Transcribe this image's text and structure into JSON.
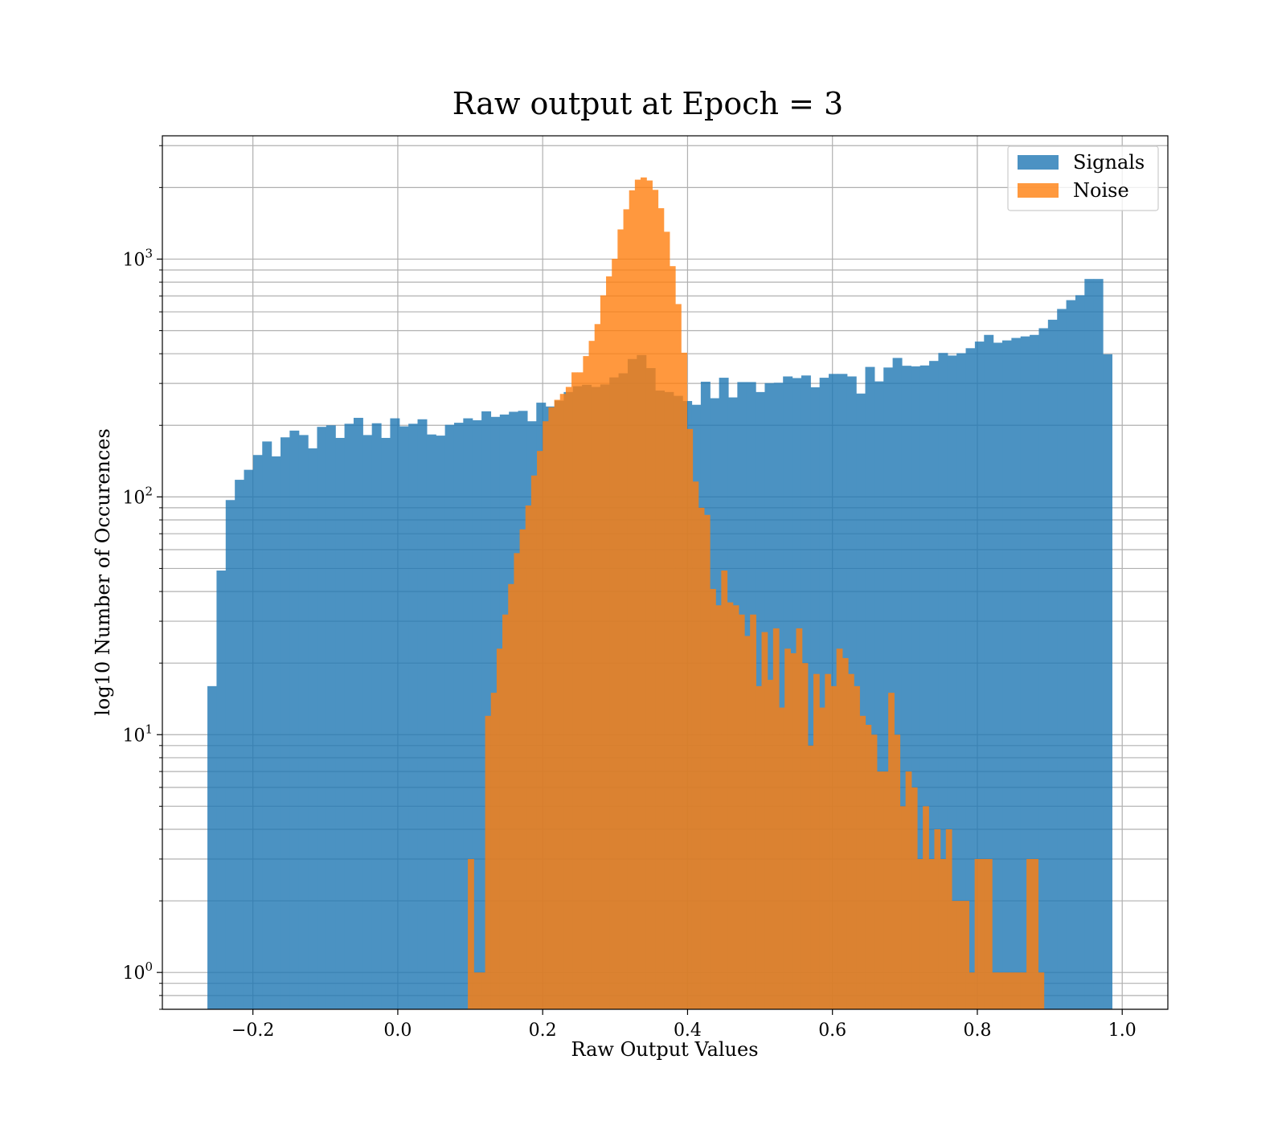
{
  "chart_data": {
    "type": "histogram",
    "title": "Raw output at Epoch = 3",
    "xlabel": "Raw Output Values",
    "ylabel": "log10 Number of Occurences",
    "xlim": [
      -0.325,
      1.063
    ],
    "ylim": [
      0.7,
      3300
    ],
    "yscale": "log",
    "grid": true,
    "legend": {
      "position": "top-right"
    },
    "xticks": [
      {
        "value": -0.2,
        "label": "−0.2"
      },
      {
        "value": 0.0,
        "label": "0.0"
      },
      {
        "value": 0.2,
        "label": "0.2"
      },
      {
        "value": 0.4,
        "label": "0.4"
      },
      {
        "value": 0.6,
        "label": "0.6"
      },
      {
        "value": 0.8,
        "label": "0.8"
      },
      {
        "value": 1.0,
        "label": "1.0"
      }
    ],
    "yticks": [
      {
        "value": 1,
        "base": "10",
        "exp": "0"
      },
      {
        "value": 10,
        "base": "10",
        "exp": "1"
      },
      {
        "value": 100,
        "base": "10",
        "exp": "2"
      },
      {
        "value": 1000,
        "base": "10",
        "exp": "3"
      }
    ],
    "series": [
      {
        "name": "Signals",
        "color": "#1f77b4",
        "opacity": 0.8,
        "bin_start": -0.2628,
        "bin_width": 0.012612,
        "counts": [
          16,
          49,
          97,
          118,
          130,
          150,
          171,
          148,
          178,
          190,
          182,
          160,
          197,
          200,
          177,
          203,
          215,
          182,
          204,
          177,
          214,
          198,
          203,
          212,
          183,
          181,
          201,
          205,
          214,
          210,
          229,
          217,
          222,
          228,
          230,
          208,
          249,
          240,
          254,
          276,
          292,
          296,
          290,
          297,
          318,
          331,
          380,
          395,
          348,
          280,
          276,
          266,
          253,
          244,
          305,
          260,
          317,
          262,
          304,
          304,
          276,
          301,
          302,
          321,
          316,
          324,
          289,
          317,
          329,
          329,
          321,
          272,
          352,
          306,
          350,
          384,
          356,
          354,
          357,
          373,
          403,
          393,
          402,
          422,
          450,
          480,
          445,
          455,
          466,
          473,
          480,
          512,
          556,
          617,
          672,
          705,
          825,
          825,
          398
        ]
      },
      {
        "name": "Noise",
        "color": "#ff7f0e",
        "opacity": 0.8,
        "bin_start": 0.0967,
        "bin_width": 0.00795,
        "counts": [
          3,
          1,
          1,
          12,
          15,
          23,
          32,
          43,
          58,
          73,
          92,
          123,
          156,
          208,
          238,
          256,
          271,
          290,
          334,
          334,
          391,
          453,
          533,
          704,
          846,
          1003,
          1333,
          1620,
          1947,
          2158,
          2205,
          2141,
          1955,
          1637,
          1303,
          934,
          647,
          404,
          193,
          116,
          90,
          84,
          41,
          35,
          49,
          36,
          35,
          32,
          26,
          32,
          16,
          27,
          17,
          28,
          13,
          23,
          22,
          28,
          20,
          9,
          18,
          13,
          18,
          16,
          23,
          21,
          18,
          16,
          12,
          11,
          10,
          7,
          7,
          15,
          10,
          5,
          7,
          6,
          3,
          5,
          3,
          4,
          3,
          4,
          2,
          2,
          2,
          1,
          3,
          3,
          3,
          1,
          1,
          1,
          1,
          1,
          1,
          3,
          3,
          1
        ]
      }
    ]
  }
}
